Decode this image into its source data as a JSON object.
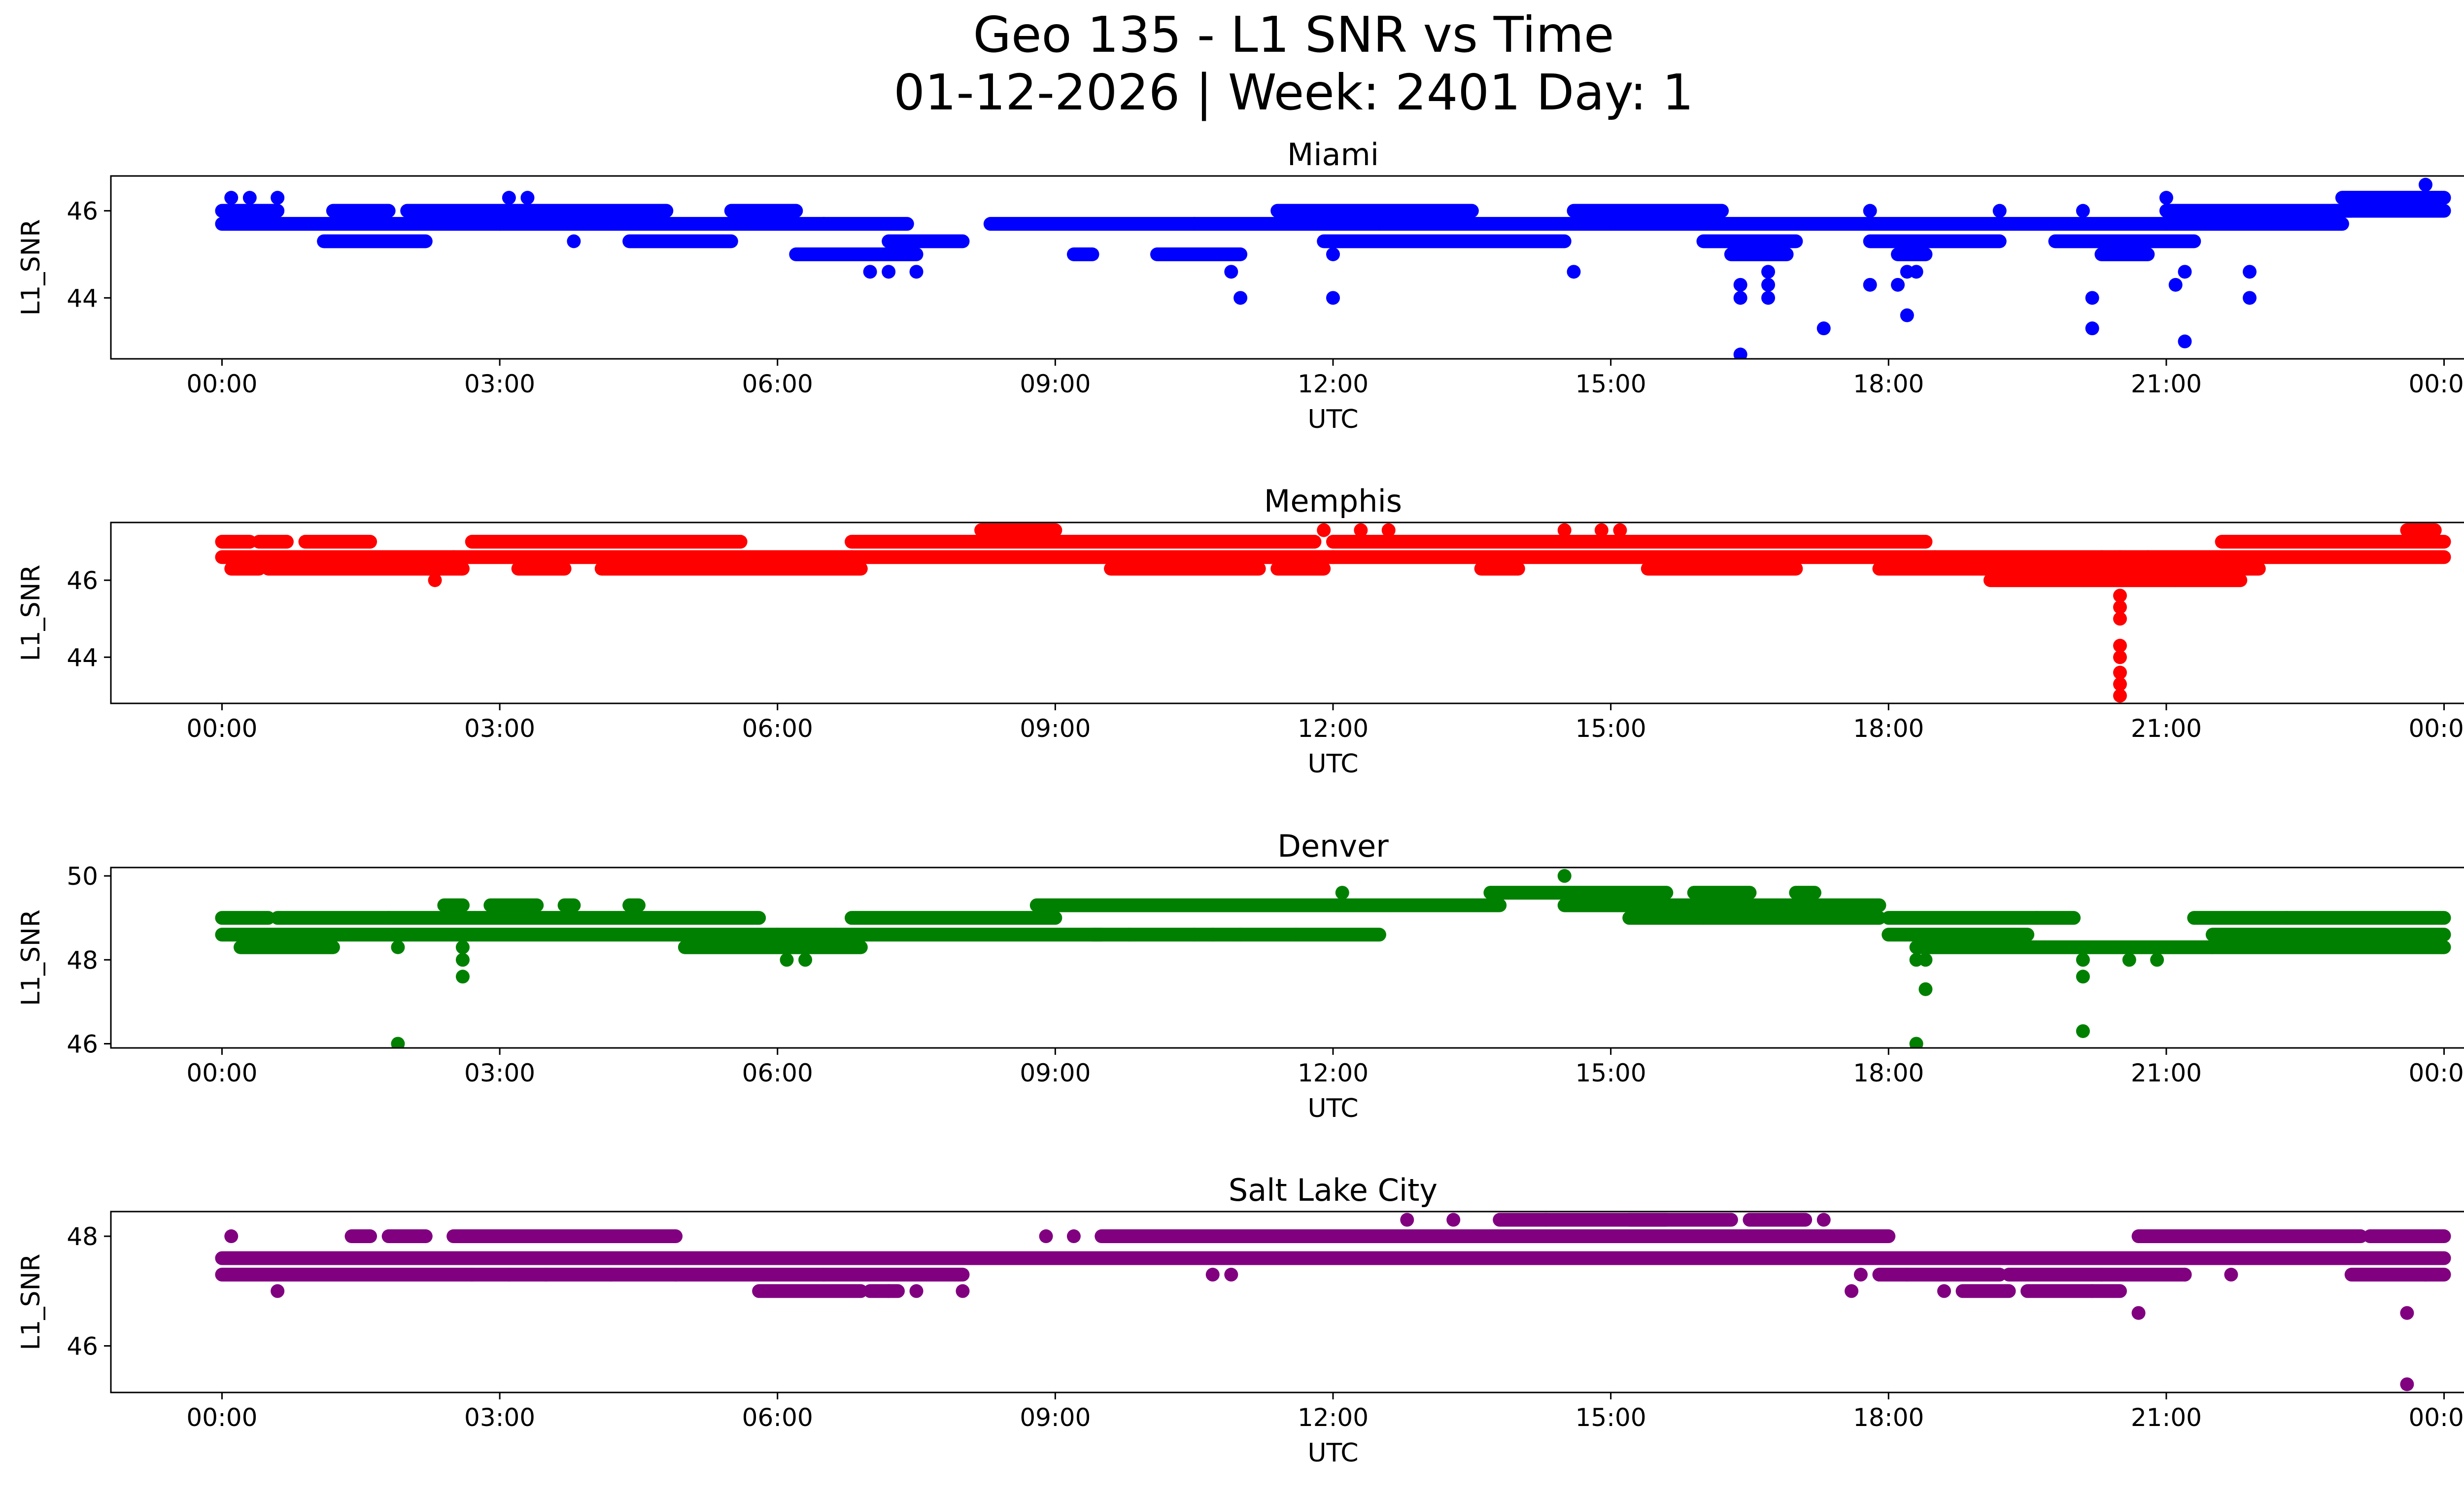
{
  "figure": {
    "title_line1": "Geo 135 - L1 SNR vs Time",
    "title_line2": "01-12-2026 | Week: 2401 Day: 1"
  },
  "chart_data": [
    {
      "type": "scatter",
      "title": "Miami",
      "xlabel": "UTC",
      "ylabel": "L1_SNR",
      "color": "#0000ff",
      "xlim": [
        -1.2,
        25.2
      ],
      "ylim": [
        42.6,
        46.8
      ],
      "xticks": [
        "00:00",
        "03:00",
        "06:00",
        "09:00",
        "12:00",
        "15:00",
        "18:00",
        "21:00",
        "00:00"
      ],
      "yticks": [
        44,
        46
      ],
      "bands": [
        {
          "y": 46.0,
          "segments": [
            [
              0,
              0.6
            ],
            [
              1.2,
              1.8
            ],
            [
              2.0,
              4.8
            ],
            [
              5.5,
              6.2
            ],
            [
              11.4,
              13.5
            ],
            [
              14.6,
              16.2
            ],
            [
              21.0,
              23.0
            ],
            [
              22.8,
              24.0
            ]
          ]
        },
        {
          "y": 45.7,
          "segments": [
            [
              0,
              3.0
            ],
            [
              3.0,
              6.5
            ],
            [
              6.5,
              7.4
            ],
            [
              8.3,
              10.5
            ],
            [
              10.5,
              12.5
            ],
            [
              12.5,
              15.0
            ],
            [
              15.0,
              17.8
            ],
            [
              17.8,
              21.0
            ],
            [
              21.0,
              22.9
            ]
          ]
        },
        {
          "y": 45.3,
          "segments": [
            [
              1.1,
              2.2
            ],
            [
              4.4,
              5.5
            ],
            [
              7.2,
              8.0
            ],
            [
              11.9,
              12.5
            ],
            [
              12.5,
              14.5
            ],
            [
              16.0,
              17.0
            ],
            [
              17.8,
              19.2
            ],
            [
              19.8,
              21.3
            ]
          ]
        },
        {
          "y": 45.0,
          "segments": [
            [
              6.2,
              7.5
            ],
            [
              9.2,
              9.4
            ],
            [
              10.1,
              11.0
            ],
            [
              16.3,
              16.9
            ],
            [
              18.1,
              18.4
            ],
            [
              20.3,
              20.8
            ]
          ]
        },
        {
          "y": 46.3,
          "segments": [
            [
              22.9,
              24.0
            ]
          ]
        }
      ],
      "points": [
        [
          0.1,
          46.3
        ],
        [
          0.3,
          46.3
        ],
        [
          0.6,
          46.3
        ],
        [
          3.1,
          46.3
        ],
        [
          3.3,
          46.3
        ],
        [
          3.8,
          45.3
        ],
        [
          7.0,
          44.6
        ],
        [
          7.2,
          44.6
        ],
        [
          7.5,
          44.6
        ],
        [
          10.9,
          44.6
        ],
        [
          11.0,
          44.0
        ],
        [
          12.0,
          44.0
        ],
        [
          12.0,
          45.0
        ],
        [
          14.6,
          44.6
        ],
        [
          16.4,
          44.3
        ],
        [
          16.4,
          44.0
        ],
        [
          16.4,
          42.7
        ],
        [
          16.7,
          44.6
        ],
        [
          16.7,
          44.3
        ],
        [
          16.7,
          44.0
        ],
        [
          17.3,
          43.3
        ],
        [
          17.8,
          44.3
        ],
        [
          18.1,
          44.3
        ],
        [
          18.2,
          44.6
        ],
        [
          18.2,
          43.6
        ],
        [
          18.3,
          44.6
        ],
        [
          20.2,
          44.0
        ],
        [
          20.2,
          43.3
        ],
        [
          20.1,
          46.0
        ],
        [
          21.0,
          46.3
        ],
        [
          21.1,
          44.3
        ],
        [
          21.2,
          43.0
        ],
        [
          21.2,
          44.6
        ],
        [
          21.9,
          44.6
        ],
        [
          21.9,
          44.0
        ],
        [
          23.8,
          46.6
        ],
        [
          17.8,
          46.0
        ],
        [
          19.2,
          46.0
        ]
      ]
    },
    {
      "type": "scatter",
      "title": "Memphis",
      "xlabel": "UTC",
      "ylabel": "L1_SNR",
      "color": "#ff0000",
      "xlim": [
        -1.2,
        25.2
      ],
      "ylim": [
        42.8,
        47.5
      ],
      "xticks": [
        "00:00",
        "03:00",
        "06:00",
        "09:00",
        "12:00",
        "15:00",
        "18:00",
        "21:00",
        "00:00"
      ],
      "yticks": [
        44,
        46
      ],
      "bands": [
        {
          "y": 47.0,
          "segments": [
            [
              0,
              0.3
            ],
            [
              0.4,
              0.7
            ],
            [
              0.9,
              1.6
            ],
            [
              2.7,
              5.6
            ],
            [
              6.8,
              11.8
            ],
            [
              12.0,
              18.4
            ],
            [
              21.6,
              24.0
            ]
          ]
        },
        {
          "y": 46.6,
          "segments": [
            [
              0,
              2.5
            ],
            [
              2.5,
              6.8
            ],
            [
              6.8,
              12.0
            ],
            [
              12.0,
              18.5
            ],
            [
              18.5,
              20.5
            ],
            [
              20.5,
              24.0
            ]
          ]
        },
        {
          "y": 46.3,
          "segments": [
            [
              0.1,
              0.4
            ],
            [
              0.5,
              2.6
            ],
            [
              3.2,
              3.7
            ],
            [
              4.1,
              6.9
            ],
            [
              9.6,
              11.2
            ],
            [
              11.4,
              11.9
            ],
            [
              13.6,
              14.0
            ],
            [
              15.4,
              17.0
            ],
            [
              17.9,
              19.0
            ],
            [
              19.0,
              22.0
            ]
          ]
        },
        {
          "y": 46.0,
          "segments": [
            [
              19.1,
              21.8
            ]
          ]
        },
        {
          "y": 47.3,
          "segments": [
            [
              8.2,
              9.0
            ],
            [
              23.6,
              23.9
            ]
          ]
        }
      ],
      "points": [
        [
          2.3,
          46.0
        ],
        [
          11.9,
          47.3
        ],
        [
          12.3,
          47.3
        ],
        [
          12.6,
          47.3
        ],
        [
          14.5,
          47.3
        ],
        [
          14.9,
          47.3
        ],
        [
          15.1,
          47.3
        ],
        [
          20.1,
          46.3
        ],
        [
          20.1,
          46.0
        ],
        [
          20.5,
          45.6
        ],
        [
          20.5,
          45.3
        ],
        [
          20.5,
          45.0
        ],
        [
          20.5,
          44.3
        ],
        [
          20.5,
          44.0
        ],
        [
          20.5,
          43.6
        ],
        [
          20.5,
          43.3
        ],
        [
          20.5,
          43.0
        ],
        [
          20.3,
          46.6
        ],
        [
          20.8,
          46.6
        ],
        [
          21.1,
          46.0
        ]
      ]
    },
    {
      "type": "scatter",
      "title": "Denver",
      "xlabel": "UTC",
      "ylabel": "L1_SNR",
      "color": "#008000",
      "xlim": [
        -1.2,
        25.2
      ],
      "ylim": [
        45.9,
        50.2
      ],
      "xticks": [
        "00:00",
        "03:00",
        "06:00",
        "09:00",
        "12:00",
        "15:00",
        "18:00",
        "21:00",
        "00:00"
      ],
      "yticks": [
        46,
        48,
        50
      ],
      "bands": [
        {
          "y": 49.0,
          "segments": [
            [
              0,
              0.5
            ],
            [
              0.6,
              1.8
            ],
            [
              1.8,
              5.8
            ],
            [
              6.8,
              9.0
            ],
            [
              15.2,
              17.9
            ],
            [
              18.0,
              20.0
            ],
            [
              21.3,
              24.0
            ]
          ]
        },
        {
          "y": 48.6,
          "segments": [
            [
              0,
              6.0
            ],
            [
              6.0,
              9.5
            ],
            [
              9.4,
              12.5
            ],
            [
              18.0,
              19.5
            ],
            [
              21.5,
              24.0
            ]
          ]
        },
        {
          "y": 48.3,
          "segments": [
            [
              0.2,
              1.2
            ],
            [
              5.0,
              6.9
            ],
            [
              18.3,
              21.5
            ],
            [
              21.5,
              24.0
            ]
          ]
        },
        {
          "y": 49.3,
          "segments": [
            [
              2.4,
              2.6
            ],
            [
              2.9,
              3.4
            ],
            [
              3.7,
              3.8
            ],
            [
              4.4,
              4.5
            ],
            [
              8.8,
              13.8
            ],
            [
              14.5,
              17.9
            ]
          ]
        },
        {
          "y": 49.6,
          "segments": [
            [
              13.7,
              15.6
            ],
            [
              15.9,
              16.5
            ],
            [
              17.0,
              17.2
            ]
          ]
        }
      ],
      "points": [
        [
          1.9,
          48.3
        ],
        [
          1.9,
          46.0
        ],
        [
          2.6,
          48.3
        ],
        [
          2.6,
          48.0
        ],
        [
          2.6,
          47.6
        ],
        [
          6.1,
          48.0
        ],
        [
          6.3,
          48.0
        ],
        [
          9.8,
          48.6
        ],
        [
          10.5,
          48.6
        ],
        [
          10.7,
          48.6
        ],
        [
          11.0,
          48.6
        ],
        [
          11.6,
          48.6
        ],
        [
          12.1,
          49.6
        ],
        [
          14.5,
          50.0
        ],
        [
          18.3,
          48.0
        ],
        [
          18.3,
          46.0
        ],
        [
          18.4,
          48.0
        ],
        [
          18.4,
          47.3
        ],
        [
          20.1,
          48.0
        ],
        [
          20.1,
          47.6
        ],
        [
          20.1,
          46.3
        ],
        [
          20.6,
          48.0
        ],
        [
          20.9,
          48.0
        ],
        [
          19.6,
          49.0
        ],
        [
          22.3,
          49.0
        ],
        [
          16.0,
          49.0
        ]
      ]
    },
    {
      "type": "scatter",
      "title": "Salt Lake City",
      "xlabel": "UTC",
      "ylabel": "L1_SNR",
      "color": "#800080",
      "xlim": [
        -1.2,
        25.2
      ],
      "ylim": [
        45.15,
        48.45
      ],
      "xticks": [
        "00:00",
        "03:00",
        "06:00",
        "09:00",
        "12:00",
        "15:00",
        "18:00",
        "21:00",
        "00:00"
      ],
      "yticks": [
        46,
        48
      ],
      "bands": [
        {
          "y": 47.6,
          "segments": [
            [
              0,
              6.0
            ],
            [
              6.0,
              10.0
            ],
            [
              10.0,
              14.0
            ],
            [
              14.0,
              18.5
            ],
            [
              18.5,
              21.0
            ],
            [
              21.0,
              24.0
            ]
          ]
        },
        {
          "y": 47.3,
          "segments": [
            [
              0,
              2.7
            ],
            [
              2.7,
              4.9
            ],
            [
              4.9,
              6.5
            ],
            [
              6.5,
              8.0
            ],
            [
              17.9,
              19.2
            ],
            [
              19.3,
              20.3
            ],
            [
              20.3,
              21.2
            ],
            [
              23.0,
              24.0
            ]
          ]
        },
        {
          "y": 48.0,
          "segments": [
            [
              1.4,
              1.6
            ],
            [
              1.8,
              2.2
            ],
            [
              2.5,
              4.9
            ],
            [
              9.5,
              12.5
            ],
            [
              12.5,
              18.0
            ],
            [
              20.7,
              23.1
            ],
            [
              23.2,
              24.0
            ]
          ]
        },
        {
          "y": 47.0,
          "segments": [
            [
              5.8,
              6.9
            ],
            [
              7.0,
              7.3
            ],
            [
              18.8,
              19.3
            ],
            [
              19.5,
              20.5
            ]
          ]
        },
        {
          "y": 48.3,
          "segments": [
            [
              13.8,
              16.3
            ],
            [
              16.5,
              17.1
            ],
            [
              15.2,
              15.6
            ]
          ]
        }
      ],
      "points": [
        [
          0.1,
          48.0
        ],
        [
          0.6,
          47.0
        ],
        [
          3.1,
          47.3
        ],
        [
          3.5,
          47.3
        ],
        [
          4.2,
          47.3
        ],
        [
          7.2,
          47.0
        ],
        [
          7.5,
          47.0
        ],
        [
          8.0,
          47.0
        ],
        [
          8.9,
          48.0
        ],
        [
          9.2,
          48.0
        ],
        [
          10.7,
          47.3
        ],
        [
          10.9,
          47.3
        ],
        [
          12.8,
          48.3
        ],
        [
          13.3,
          48.3
        ],
        [
          14.3,
          48.3
        ],
        [
          17.6,
          47.0
        ],
        [
          17.7,
          47.3
        ],
        [
          18.2,
          47.3
        ],
        [
          18.6,
          47.0
        ],
        [
          20.2,
          47.0
        ],
        [
          20.7,
          46.6
        ],
        [
          21.2,
          47.3
        ],
        [
          21.7,
          47.3
        ],
        [
          23.6,
          46.6
        ],
        [
          23.6,
          45.3
        ],
        [
          23.8,
          47.3
        ],
        [
          23.8,
          48.0
        ],
        [
          17.3,
          48.3
        ]
      ]
    }
  ]
}
